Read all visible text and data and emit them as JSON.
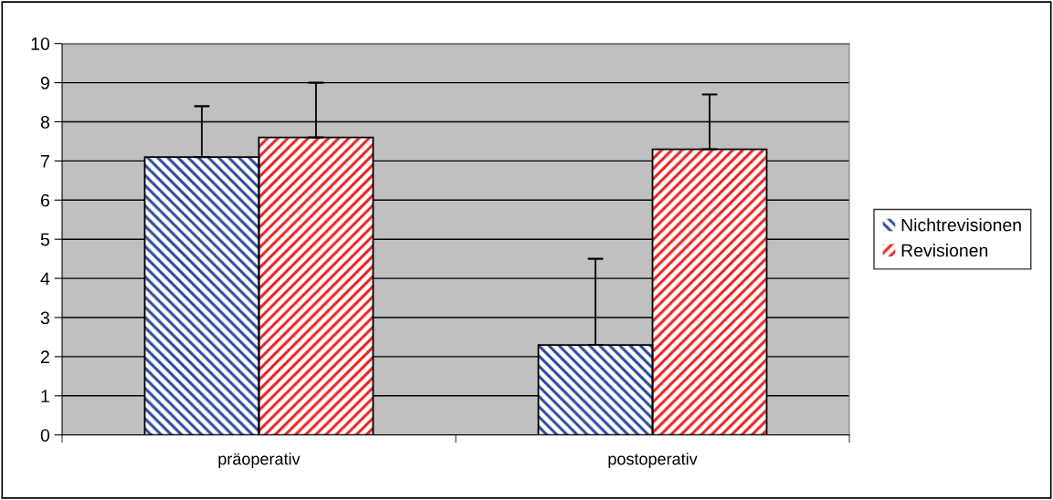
{
  "chart_data": {
    "type": "bar",
    "categories": [
      "präoperativ",
      "postoperativ"
    ],
    "series": [
      {
        "name": "Nichtrevisionen",
        "color": "#2e4a9e",
        "values": [
          7.1,
          2.3
        ],
        "errors": [
          [
            7.1,
            8.4
          ],
          [
            2.3,
            4.5
          ]
        ]
      },
      {
        "name": "Revisionen",
        "color": "#ee2222",
        "values": [
          7.6,
          7.3
        ],
        "errors": [
          [
            7.6,
            9.0
          ],
          [
            7.3,
            8.7
          ]
        ]
      }
    ],
    "ylim": [
      0,
      10
    ],
    "yticks": [
      0,
      1,
      2,
      3,
      4,
      5,
      6,
      7,
      8,
      9,
      10
    ],
    "grid": "y",
    "legend": "right"
  }
}
